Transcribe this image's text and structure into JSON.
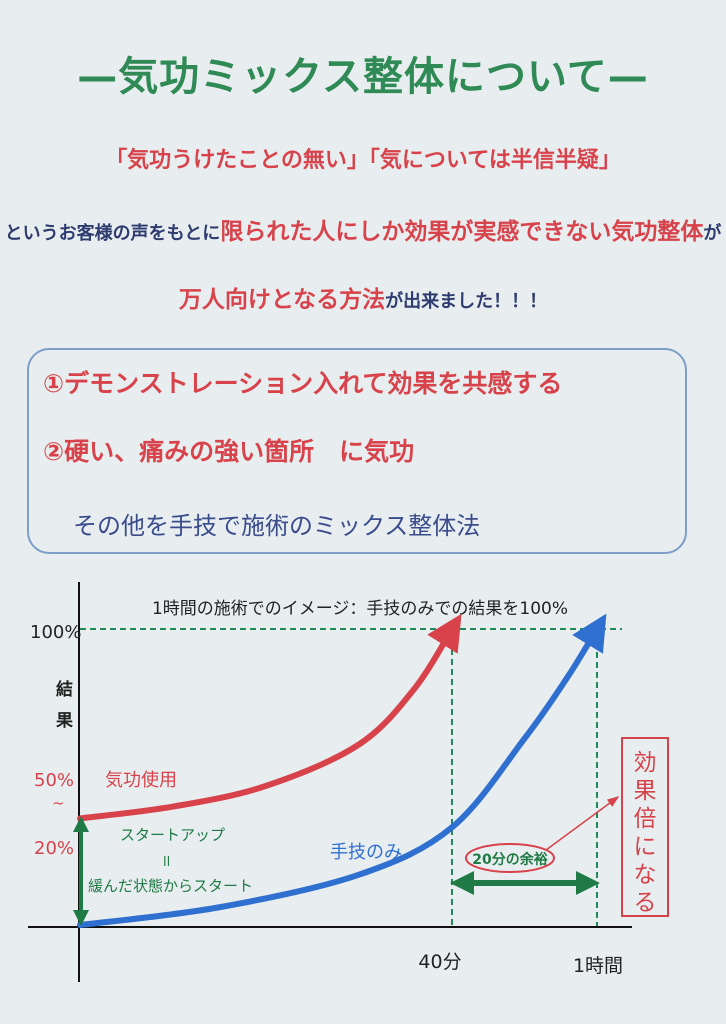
{
  "title": "—気功ミックス整体について—",
  "quotes": "「気功うけたことの無い」「気については半信半疑」",
  "sentence": {
    "part1": "というお客様の声をもとに",
    "part2": "限られた人にしか効果が実感できない気功整体",
    "part3": "が",
    "part4": "万人向けとなる方法",
    "part5": "が出来ました！！！"
  },
  "box": {
    "item1": "①デモンストレーション入れて効果を共感する",
    "item2": "②硬い、痛みの強い箇所　に気功",
    "item3": "その他を手技で施術のミックス整体法"
  },
  "colors": {
    "green": "#2f8a55",
    "red": "#d8434b",
    "blue": "#2f6fd0",
    "navy": "#2e3b6e",
    "dark_green": "#1f7a45"
  },
  "chart_data": {
    "type": "line",
    "title": "1時間の施術でのイメージ：手技のみでの結果を100%",
    "ylabel": "結果",
    "xlabel": "",
    "x_ticks": [
      {
        "x": 40,
        "label": "40分"
      },
      {
        "x": 60,
        "label": "1時間"
      }
    ],
    "y_ticks": [
      {
        "y": 100,
        "label": "100%"
      }
    ],
    "ylim": [
      0,
      100
    ],
    "xlim": [
      0,
      60
    ],
    "series": [
      {
        "name": "気功使用",
        "color": "#d8434b",
        "points": [
          [
            0,
            36
          ],
          [
            10,
            40
          ],
          [
            20,
            47
          ],
          [
            30,
            61
          ],
          [
            36,
            80
          ],
          [
            40,
            100
          ]
        ]
      },
      {
        "name": "手技のみ",
        "color": "#2f6fd0",
        "points": [
          [
            0,
            0
          ],
          [
            15,
            6
          ],
          [
            30,
            17
          ],
          [
            40,
            33
          ],
          [
            50,
            63
          ],
          [
            56,
            84
          ],
          [
            60,
            100
          ]
        ]
      }
    ],
    "annotations": {
      "start_range_top": "50%",
      "start_range_sep": "~",
      "start_range_bottom": "20%",
      "startup": "スタートアップ",
      "equals": "ll",
      "startup_desc": "緩んだ状態からスタート",
      "margin": "20分の余裕",
      "result_box": "効果倍になる"
    }
  }
}
